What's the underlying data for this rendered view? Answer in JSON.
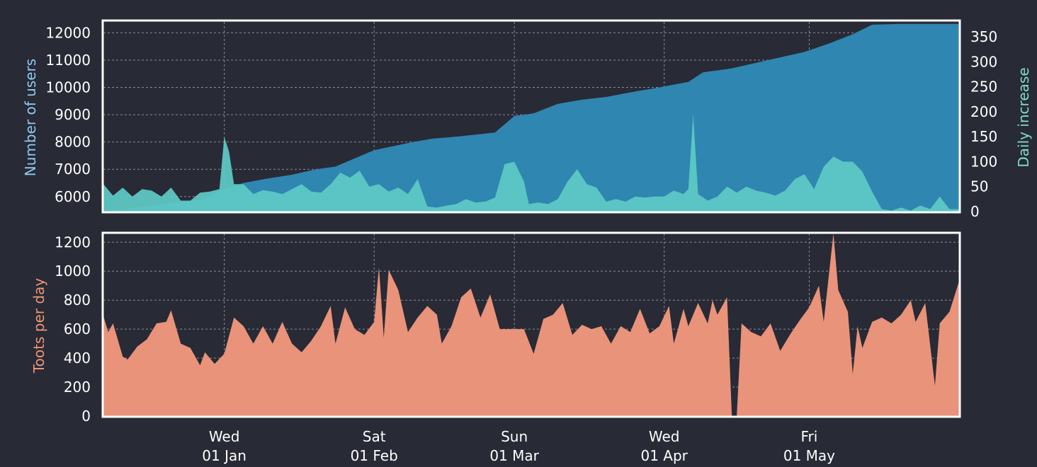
{
  "chart_data": [
    {
      "type": "area",
      "ylabel": "Number of users",
      "ylabel_right": "Daily increase",
      "x_range": [
        "2019-12-07",
        "2020-06-01"
      ],
      "x_tick_labels": [
        {
          "date": "2020-01-01",
          "weekday": "Wed",
          "day": "01 Jan"
        },
        {
          "date": "2020-02-01",
          "weekday": "Sat",
          "day": "01 Feb"
        },
        {
          "date": "2020-03-01",
          "weekday": "Sun",
          "day": "01 Mar"
        },
        {
          "date": "2020-04-01",
          "weekday": "Wed",
          "day": "01 Apr"
        },
        {
          "date": "2020-05-01",
          "weekday": "Fri",
          "day": "01 May"
        }
      ],
      "y_left_ticks": [
        6000,
        7000,
        8000,
        9000,
        10000,
        11000,
        12000
      ],
      "y_left_range": [
        5450,
        12400
      ],
      "y_right_ticks": [
        0,
        50,
        100,
        150,
        200,
        250,
        300,
        350
      ],
      "y_right_range": [
        0,
        380
      ],
      "grid": true,
      "series": [
        {
          "name": "Number of users",
          "axis": "left",
          "color": "#2f86b0",
          "points": [
            [
              "2019-12-07",
              5450
            ],
            [
              "2019-12-15",
              5620
            ],
            [
              "2019-12-22",
              5780
            ],
            [
              "2019-12-28",
              5900
            ],
            [
              "2019-12-31",
              6200
            ],
            [
              "2020-01-05",
              6500
            ],
            [
              "2020-01-10",
              6660
            ],
            [
              "2020-01-15",
              6800
            ],
            [
              "2020-01-20",
              7000
            ],
            [
              "2020-01-24",
              7100
            ],
            [
              "2020-01-28",
              7400
            ],
            [
              "2020-02-01",
              7700
            ],
            [
              "2020-02-05",
              7850
            ],
            [
              "2020-02-09",
              8000
            ],
            [
              "2020-02-13",
              8120
            ],
            [
              "2020-02-17",
              8180
            ],
            [
              "2020-02-21",
              8250
            ],
            [
              "2020-02-26",
              8350
            ],
            [
              "2020-03-01",
              8950
            ],
            [
              "2020-03-05",
              9050
            ],
            [
              "2020-03-10",
              9400
            ],
            [
              "2020-03-15",
              9550
            ],
            [
              "2020-03-20",
              9650
            ],
            [
              "2020-03-26",
              9850
            ],
            [
              "2020-03-31",
              10000
            ],
            [
              "2020-04-06",
              10200
            ],
            [
              "2020-04-09",
              10550
            ],
            [
              "2020-04-15",
              10700
            ],
            [
              "2020-04-20",
              10900
            ],
            [
              "2020-04-25",
              11100
            ],
            [
              "2020-04-30",
              11300
            ],
            [
              "2020-05-05",
              11600
            ],
            [
              "2020-05-10",
              11950
            ],
            [
              "2020-05-14",
              12300
            ],
            [
              "2020-05-20",
              12330
            ],
            [
              "2020-06-01",
              12330
            ]
          ]
        },
        {
          "name": "Daily increase",
          "axis": "right",
          "color": "#5ecbc6",
          "points": [
            [
              "2019-12-07",
              55
            ],
            [
              "2019-12-09",
              32
            ],
            [
              "2019-12-11",
              48
            ],
            [
              "2019-12-13",
              30
            ],
            [
              "2019-12-15",
              45
            ],
            [
              "2019-12-17",
              42
            ],
            [
              "2019-12-19",
              30
            ],
            [
              "2019-12-21",
              48
            ],
            [
              "2019-12-23",
              22
            ],
            [
              "2019-12-25",
              22
            ],
            [
              "2019-12-27",
              38
            ],
            [
              "2019-12-29",
              40
            ],
            [
              "2019-12-31",
              45
            ],
            [
              "2020-01-01",
              150
            ],
            [
              "2020-01-02",
              120
            ],
            [
              "2020-01-03",
              55
            ],
            [
              "2020-01-05",
              55
            ],
            [
              "2020-01-07",
              35
            ],
            [
              "2020-01-09",
              43
            ],
            [
              "2020-01-11",
              40
            ],
            [
              "2020-01-13",
              35
            ],
            [
              "2020-01-15",
              45
            ],
            [
              "2020-01-17",
              55
            ],
            [
              "2020-01-19",
              40
            ],
            [
              "2020-01-21",
              38
            ],
            [
              "2020-01-23",
              55
            ],
            [
              "2020-01-25",
              78
            ],
            [
              "2020-01-27",
              68
            ],
            [
              "2020-01-29",
              82
            ],
            [
              "2020-01-31",
              50
            ],
            [
              "2020-02-02",
              55
            ],
            [
              "2020-02-04",
              40
            ],
            [
              "2020-02-06",
              48
            ],
            [
              "2020-02-08",
              35
            ],
            [
              "2020-02-10",
              65
            ],
            [
              "2020-02-12",
              10
            ],
            [
              "2020-02-14",
              8
            ],
            [
              "2020-02-16",
              12
            ],
            [
              "2020-02-18",
              15
            ],
            [
              "2020-02-20",
              25
            ],
            [
              "2020-02-22",
              18
            ],
            [
              "2020-02-24",
              20
            ],
            [
              "2020-02-26",
              28
            ],
            [
              "2020-02-28",
              95
            ],
            [
              "2020-03-01",
              100
            ],
            [
              "2020-03-03",
              60
            ],
            [
              "2020-03-04",
              15
            ],
            [
              "2020-03-06",
              18
            ],
            [
              "2020-03-08",
              15
            ],
            [
              "2020-03-10",
              25
            ],
            [
              "2020-03-12",
              60
            ],
            [
              "2020-03-14",
              85
            ],
            [
              "2020-03-16",
              55
            ],
            [
              "2020-03-18",
              48
            ],
            [
              "2020-03-20",
              20
            ],
            [
              "2020-03-22",
              25
            ],
            [
              "2020-03-24",
              20
            ],
            [
              "2020-03-26",
              30
            ],
            [
              "2020-03-28",
              28
            ],
            [
              "2020-03-30",
              30
            ],
            [
              "2020-04-01",
              30
            ],
            [
              "2020-04-03",
              42
            ],
            [
              "2020-04-05",
              35
            ],
            [
              "2020-04-06",
              45
            ],
            [
              "2020-04-07",
              195
            ],
            [
              "2020-04-08",
              35
            ],
            [
              "2020-04-10",
              22
            ],
            [
              "2020-04-12",
              30
            ],
            [
              "2020-04-14",
              50
            ],
            [
              "2020-04-16",
              38
            ],
            [
              "2020-04-18",
              50
            ],
            [
              "2020-04-20",
              42
            ],
            [
              "2020-04-22",
              38
            ],
            [
              "2020-04-24",
              32
            ],
            [
              "2020-04-26",
              42
            ],
            [
              "2020-04-28",
              65
            ],
            [
              "2020-04-30",
              75
            ],
            [
              "2020-05-02",
              45
            ],
            [
              "2020-05-04",
              90
            ],
            [
              "2020-05-06",
              110
            ],
            [
              "2020-05-08",
              100
            ],
            [
              "2020-05-10",
              100
            ],
            [
              "2020-05-12",
              80
            ],
            [
              "2020-05-14",
              40
            ],
            [
              "2020-05-16",
              5
            ],
            [
              "2020-05-18",
              2
            ],
            [
              "2020-05-20",
              8
            ],
            [
              "2020-05-22",
              2
            ],
            [
              "2020-05-24",
              12
            ],
            [
              "2020-05-26",
              5
            ],
            [
              "2020-05-28",
              30
            ],
            [
              "2020-05-30",
              5
            ],
            [
              "2020-06-01",
              5
            ]
          ]
        }
      ]
    },
    {
      "type": "area",
      "ylabel": "Toots per day",
      "x_range": [
        "2019-12-07",
        "2020-06-01"
      ],
      "y_ticks": [
        0,
        200,
        400,
        600,
        800,
        1000,
        1200
      ],
      "y_range": [
        0,
        1260
      ],
      "grid": true,
      "series": [
        {
          "name": "Toots per day",
          "color": "#e9937a",
          "points": [
            [
              "2019-12-07",
              690
            ],
            [
              "2019-12-08",
              580
            ],
            [
              "2019-12-09",
              640
            ],
            [
              "2019-12-11",
              410
            ],
            [
              "2019-12-12",
              390
            ],
            [
              "2019-12-14",
              480
            ],
            [
              "2019-12-16",
              530
            ],
            [
              "2019-12-18",
              640
            ],
            [
              "2019-12-20",
              650
            ],
            [
              "2019-12-21",
              730
            ],
            [
              "2019-12-23",
              500
            ],
            [
              "2019-12-25",
              470
            ],
            [
              "2019-12-27",
              350
            ],
            [
              "2019-12-28",
              440
            ],
            [
              "2019-12-30",
              360
            ],
            [
              "2020-01-01",
              430
            ],
            [
              "2020-01-03",
              680
            ],
            [
              "2020-01-05",
              620
            ],
            [
              "2020-01-07",
              500
            ],
            [
              "2020-01-09",
              620
            ],
            [
              "2020-01-11",
              500
            ],
            [
              "2020-01-13",
              650
            ],
            [
              "2020-01-15",
              500
            ],
            [
              "2020-01-17",
              440
            ],
            [
              "2020-01-19",
              520
            ],
            [
              "2020-01-21",
              620
            ],
            [
              "2020-01-23",
              760
            ],
            [
              "2020-01-24",
              500
            ],
            [
              "2020-01-26",
              750
            ],
            [
              "2020-01-28",
              600
            ],
            [
              "2020-01-30",
              560
            ],
            [
              "2020-02-01",
              650
            ],
            [
              "2020-02-02",
              1030
            ],
            [
              "2020-02-03",
              540
            ],
            [
              "2020-02-04",
              1010
            ],
            [
              "2020-02-06",
              870
            ],
            [
              "2020-02-08",
              580
            ],
            [
              "2020-02-10",
              680
            ],
            [
              "2020-02-12",
              760
            ],
            [
              "2020-02-14",
              700
            ],
            [
              "2020-02-15",
              500
            ],
            [
              "2020-02-17",
              620
            ],
            [
              "2020-02-19",
              820
            ],
            [
              "2020-02-21",
              880
            ],
            [
              "2020-02-23",
              680
            ],
            [
              "2020-02-25",
              840
            ],
            [
              "2020-02-27",
              600
            ],
            [
              "2020-03-01",
              600
            ],
            [
              "2020-03-03",
              600
            ],
            [
              "2020-03-05",
              430
            ],
            [
              "2020-03-07",
              670
            ],
            [
              "2020-03-09",
              700
            ],
            [
              "2020-03-11",
              780
            ],
            [
              "2020-03-13",
              560
            ],
            [
              "2020-03-15",
              630
            ],
            [
              "2020-03-17",
              600
            ],
            [
              "2020-03-19",
              620
            ],
            [
              "2020-03-21",
              500
            ],
            [
              "2020-03-23",
              620
            ],
            [
              "2020-03-25",
              580
            ],
            [
              "2020-03-27",
              740
            ],
            [
              "2020-03-29",
              570
            ],
            [
              "2020-03-31",
              620
            ],
            [
              "2020-04-02",
              760
            ],
            [
              "2020-04-03",
              500
            ],
            [
              "2020-04-05",
              740
            ],
            [
              "2020-04-06",
              620
            ],
            [
              "2020-04-08",
              780
            ],
            [
              "2020-04-10",
              640
            ],
            [
              "2020-04-11",
              800
            ],
            [
              "2020-04-12",
              700
            ],
            [
              "2020-04-14",
              820
            ],
            [
              "2020-04-15",
              0
            ],
            [
              "2020-04-16",
              0
            ],
            [
              "2020-04-17",
              640
            ],
            [
              "2020-04-19",
              580
            ],
            [
              "2020-04-21",
              550
            ],
            [
              "2020-04-23",
              640
            ],
            [
              "2020-04-25",
              450
            ],
            [
              "2020-04-27",
              560
            ],
            [
              "2020-04-29",
              660
            ],
            [
              "2020-05-01",
              750
            ],
            [
              "2020-05-03",
              900
            ],
            [
              "2020-05-04",
              650
            ],
            [
              "2020-05-06",
              1260
            ],
            [
              "2020-05-07",
              870
            ],
            [
              "2020-05-09",
              720
            ],
            [
              "2020-05-10",
              290
            ],
            [
              "2020-05-11",
              620
            ],
            [
              "2020-05-12",
              470
            ],
            [
              "2020-05-14",
              650
            ],
            [
              "2020-05-16",
              680
            ],
            [
              "2020-05-18",
              640
            ],
            [
              "2020-05-20",
              700
            ],
            [
              "2020-05-22",
              800
            ],
            [
              "2020-05-23",
              650
            ],
            [
              "2020-05-25",
              780
            ],
            [
              "2020-05-27",
              210
            ],
            [
              "2020-05-28",
              640
            ],
            [
              "2020-05-30",
              720
            ],
            [
              "2020-06-01",
              930
            ]
          ]
        }
      ]
    }
  ]
}
